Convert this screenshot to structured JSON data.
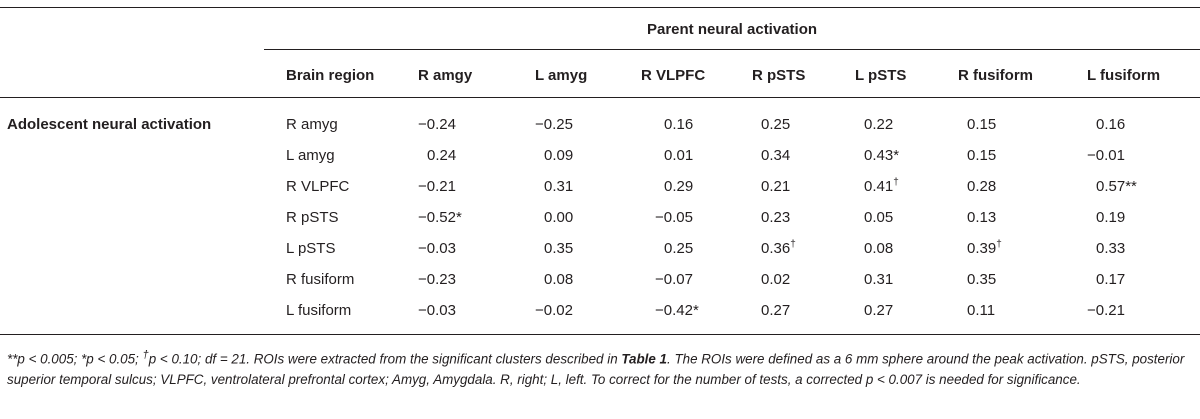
{
  "table": {
    "spanning_header": "Parent neural activation",
    "columns": [
      "Brain region",
      "R amgy",
      "L amyg",
      "R VLPFC",
      "R pSTS",
      "L pSTS",
      "R fusiform",
      "L fusiform"
    ],
    "row_group_label": "Adolescent neural activation",
    "rows": [
      {
        "region": "R amyg",
        "values": [
          "−0.24",
          "−0.25",
          "0.16",
          "0.25",
          "0.22",
          "0.15",
          "0.16"
        ],
        "marks": [
          "",
          "",
          "",
          "",
          "",
          "",
          ""
        ]
      },
      {
        "region": "L amyg",
        "values": [
          "0.24",
          "0.09",
          "0.01",
          "0.34",
          "0.43",
          "0.15",
          "−0.01"
        ],
        "marks": [
          "",
          "",
          "",
          "",
          "*",
          "",
          ""
        ]
      },
      {
        "region": "R VLPFC",
        "values": [
          "−0.21",
          "0.31",
          "0.29",
          "0.21",
          "0.41",
          "0.28",
          "0.57"
        ],
        "marks": [
          "",
          "",
          "",
          "",
          "†",
          "",
          "**"
        ]
      },
      {
        "region": "R pSTS",
        "values": [
          "−0.52",
          "0.00",
          "−0.05",
          "0.23",
          "0.05",
          "0.13",
          "0.19"
        ],
        "marks": [
          "*",
          "",
          "",
          "",
          "",
          "",
          ""
        ]
      },
      {
        "region": "L pSTS",
        "values": [
          "−0.03",
          "0.35",
          "0.25",
          "0.36",
          "0.08",
          "0.39",
          "0.33"
        ],
        "marks": [
          "",
          "",
          "",
          "†",
          "",
          "†",
          ""
        ]
      },
      {
        "region": "R fusiform",
        "values": [
          "−0.23",
          "0.08",
          "−0.07",
          "0.02",
          "0.31",
          "0.35",
          "0.17"
        ],
        "marks": [
          "",
          "",
          "",
          "",
          "",
          "",
          ""
        ]
      },
      {
        "region": "L fusiform",
        "values": [
          "−0.03",
          "−0.02",
          "−0.42",
          "0.27",
          "0.27",
          "0.11",
          "−0.21"
        ],
        "marks": [
          "",
          "",
          "*",
          "",
          "",
          "",
          ""
        ]
      }
    ]
  },
  "footnote": {
    "sig_a": "**p < 0.005; *p < 0.05; ",
    "dagger": "†",
    "sig_b": "p < 0.10; df = 21. ROIs were extracted from the significant clusters described in ",
    "table_ref": "Table 1",
    "rest": ". The ROIs were defined as a 6 mm sphere around the peak activation. pSTS, posterior superior temporal sulcus; VLPFC, ventrolateral prefrontal cortex; Amyg, Amygdala. R, right; L, left. To correct for the number of tests, a corrected p < 0.007 is needed for significance."
  }
}
